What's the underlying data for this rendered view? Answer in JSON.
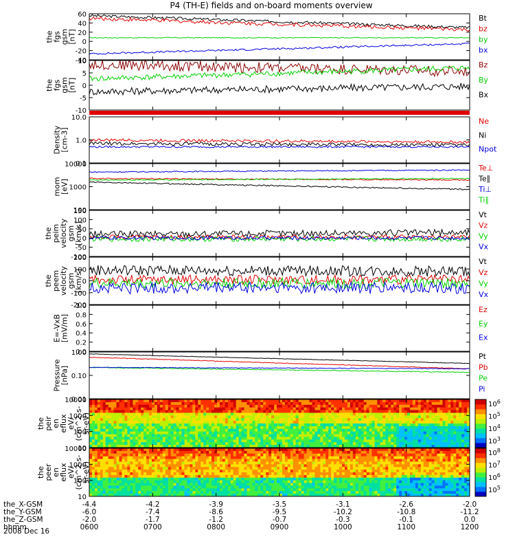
{
  "title": "P4 (TH-E) fields and on-board moments overview",
  "date_label": "2008 Dec 16",
  "colors": {
    "black": "#000000",
    "red": "#e00000",
    "green": "#00d000",
    "blue": "#0000e0",
    "darkred": "#8b0000"
  },
  "chart_data": [
    {
      "id": "p1",
      "type": "line",
      "ylabel": [
        "the",
        "fgs",
        "gsm",
        "[nT]"
      ],
      "ylim": [
        -40,
        60
      ],
      "yticks": [
        "60",
        "40",
        "20",
        "0",
        "-20",
        "-40"
      ],
      "grid": false,
      "series": [
        {
          "name": "Bt",
          "color": "#000000",
          "start": 56,
          "end": 30,
          "noise": 3
        },
        {
          "name": "bz",
          "color": "#e00000",
          "start": 50,
          "end": 25,
          "noise": 4
        },
        {
          "name": "by",
          "color": "#00d000",
          "start": 8,
          "end": 8,
          "noise": 1
        },
        {
          "name": "bx",
          "color": "#0000e0",
          "start": -27,
          "end": -5,
          "noise": 2
        }
      ]
    },
    {
      "id": "p2",
      "type": "line",
      "ylabel": [
        "the",
        "fgs",
        "gsm",
        "[nT]"
      ],
      "ylim": [
        -15,
        12
      ],
      "yticks": [
        "10",
        "5",
        "0",
        "-5",
        "-10"
      ],
      "grid": false,
      "series": [
        {
          "name": "Bz",
          "color": "#8b0000",
          "start": 10,
          "end": 6,
          "noise": 3
        },
        {
          "name": "By",
          "color": "#00d000",
          "start": 2,
          "end": 8,
          "noise": 1.5
        },
        {
          "name": "Bx",
          "color": "#000000",
          "start": -5,
          "end": -2,
          "noise": 2
        }
      ]
    },
    {
      "id": "p3",
      "type": "line",
      "ylabel": [
        "Density",
        "[cm-3]"
      ],
      "scale": "log",
      "ylim": [
        0.1,
        10
      ],
      "yticks": [
        "10.0",
        "1.0",
        "0.1"
      ],
      "grid": false,
      "series": [
        {
          "name": "Ne",
          "color": "#e00000",
          "start": 1.0,
          "end": 0.8,
          "noise": 0.12
        },
        {
          "name": "Ni",
          "color": "#000000",
          "start": 0.7,
          "end": 0.6,
          "noise": 0.15
        },
        {
          "name": "Npot",
          "color": "#0000e0",
          "start": 0.5,
          "end": 0.5,
          "noise": 0.08
        }
      ]
    },
    {
      "id": "p4",
      "type": "line",
      "ylabel": [
        "mom",
        "[eV]"
      ],
      "scale": "log",
      "ylim": [
        100,
        15000
      ],
      "yticks": [
        "10000",
        "1000",
        "100"
      ],
      "grid": false,
      "series": [
        {
          "name": "Te⊥",
          "color": "#e00000",
          "start": 3000,
          "end": 2500,
          "noise": 0.05
        },
        {
          "name": "Te∥",
          "color": "#000000",
          "start": 2000,
          "end": 900,
          "noise": 0.06
        },
        {
          "name": "Ti⊥",
          "color": "#0000e0",
          "start": 6000,
          "end": 7500,
          "noise": 0.05
        },
        {
          "name": "Ti∥",
          "color": "#00d000",
          "start": 2500,
          "end": 3000,
          "noise": 0.05
        }
      ]
    },
    {
      "id": "p5",
      "type": "line",
      "ylabel": [
        "the",
        "peim",
        "velocity",
        "gsm",
        "[km/s]"
      ],
      "ylim": [
        -100,
        150
      ],
      "yticks": [
        "150",
        "100",
        "50",
        "0",
        "-50",
        "-100"
      ],
      "grid": false,
      "series": [
        {
          "name": "Vt",
          "color": "#000000",
          "start": 20,
          "end": 30,
          "noise": 18
        },
        {
          "name": "Vz",
          "color": "#e00000",
          "start": 5,
          "end": 5,
          "noise": 12
        },
        {
          "name": "Vy",
          "color": "#00d000",
          "start": -5,
          "end": -5,
          "noise": 14
        },
        {
          "name": "Vx",
          "color": "#0000e0",
          "start": 0,
          "end": 0,
          "noise": 10
        }
      ]
    },
    {
      "id": "p6",
      "type": "line",
      "ylabel": [
        "the",
        "peem",
        "velocity",
        "gsm",
        "[km/s]"
      ],
      "ylim": [
        -200,
        200
      ],
      "yticks": [
        "200",
        "100",
        "0",
        "-100",
        "-200"
      ],
      "grid": false,
      "series": [
        {
          "name": "Vt",
          "color": "#000000",
          "start": 90,
          "end": 80,
          "noise": 45
        },
        {
          "name": "Vz",
          "color": "#e00000",
          "start": 10,
          "end": 10,
          "noise": 40
        },
        {
          "name": "Vy",
          "color": "#00d000",
          "start": -20,
          "end": -20,
          "noise": 45
        },
        {
          "name": "Vx",
          "color": "#0000e0",
          "start": -60,
          "end": -60,
          "noise": 50
        }
      ]
    },
    {
      "id": "p7",
      "type": "line",
      "ylabel": [
        "E=-VxB",
        "[mV/m]"
      ],
      "ylim": [
        0,
        1
      ],
      "yticks": [
        "1.0",
        "0.8",
        "0.6",
        "0.4",
        "0.2",
        "0.0"
      ],
      "grid": false,
      "series": [
        {
          "name": "Ez",
          "color": "#e00000"
        },
        {
          "name": "Ey",
          "color": "#00d000"
        },
        {
          "name": "Ex",
          "color": "#0000e0"
        }
      ]
    },
    {
      "id": "p8",
      "type": "line",
      "ylabel": [
        "Pressure",
        "[nPa]"
      ],
      "scale": "log",
      "ylim": [
        0.01,
        2
      ],
      "yticks": [
        "1.00",
        "0.10",
        "0.01"
      ],
      "grid": false,
      "series": [
        {
          "name": "Pt",
          "color": "#000000",
          "start": 1.6,
          "end": 0.55,
          "noise": 0.02
        },
        {
          "name": "Pb",
          "color": "#e00000",
          "start": 1.1,
          "end": 0.3,
          "noise": 0.03
        },
        {
          "name": "Pe",
          "color": "#00d000",
          "start": 0.35,
          "end": 0.2,
          "noise": 0.04
        },
        {
          "name": "Pi",
          "color": "#0000e0",
          "start": 0.35,
          "end": 0.3,
          "noise": 0.03
        }
      ]
    },
    {
      "id": "p9",
      "type": "heatmap",
      "ylabel": [
        "the",
        "peir",
        "en",
        "eflux",
        "eV/",
        "(cm^2-s-",
        "sr-eV)"
      ],
      "scale": "log",
      "ylim": [
        8,
        20000
      ],
      "yticks": [
        "10000",
        "1000",
        "100",
        "10"
      ],
      "colorbar_ticks": [
        "10^6",
        "10^5",
        "10^4",
        "10^3"
      ]
    },
    {
      "id": "p10",
      "type": "heatmap",
      "ylabel": [
        "the",
        "peer",
        "en",
        "eflux",
        "eV/",
        "(cm^2-s-",
        "sr-eV)"
      ],
      "scale": "log",
      "ylim": [
        8,
        20000
      ],
      "yticks": [
        "10000",
        "1000",
        "100",
        "10"
      ],
      "colorbar_ticks": [
        "10^8",
        "10^7",
        "10^6",
        "10^5"
      ]
    }
  ],
  "xaxis": {
    "rows": [
      {
        "label": "the_X-GSM",
        "values": [
          "-4.4",
          "-4.2",
          "-3.9",
          "-3.5",
          "-3.1",
          "-2.6",
          "-2.0"
        ]
      },
      {
        "label": "the_Y-GSM",
        "values": [
          "-6.0",
          "-7.4",
          "-8.6",
          "-9.5",
          "-10.2",
          "-10.8",
          "-11.2"
        ]
      },
      {
        "label": "the_Z-GSM",
        "values": [
          "-2.0",
          "-1.7",
          "-1.2",
          "-0.7",
          "-0.3",
          "-0.1",
          "0.0"
        ]
      },
      {
        "label": "hhmm",
        "values": [
          "0600",
          "0700",
          "0800",
          "0900",
          "1000",
          "1100",
          "1200"
        ]
      }
    ]
  }
}
